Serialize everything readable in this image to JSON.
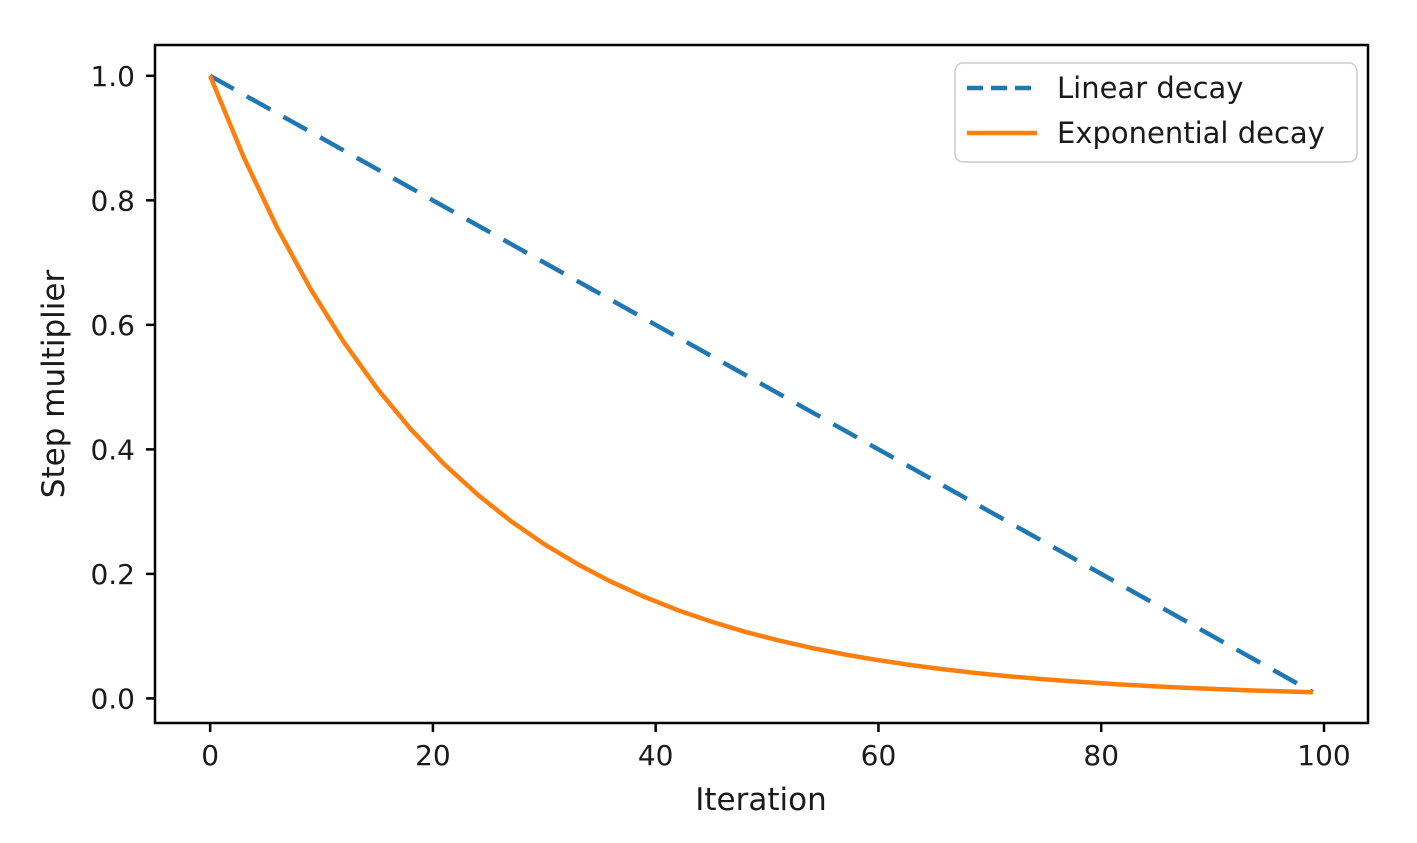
{
  "figure": {
    "background_color": "#ffffff",
    "axis_color": "#000000",
    "text_color": "#1a1a1a",
    "legend_border_color": "#cccccc"
  },
  "chart_data": {
    "type": "line",
    "title": "",
    "xlabel": "Iteration",
    "ylabel": "Step multiplier",
    "xlim": [
      -4.95,
      103.95
    ],
    "ylim": [
      -0.0395,
      1.0495
    ],
    "grid": false,
    "x_ticks": {
      "values": [
        0,
        20,
        40,
        60,
        80,
        100
      ],
      "labels": [
        "0",
        "20",
        "40",
        "60",
        "80",
        "100"
      ]
    },
    "y_ticks": {
      "values": [
        0.0,
        0.2,
        0.4,
        0.6,
        0.8,
        1.0
      ],
      "labels": [
        "0.0",
        "0.2",
        "0.4",
        "0.6",
        "0.8",
        "1.0"
      ]
    },
    "legend": {
      "position": "upper right",
      "entries": [
        "Linear decay",
        "Exponential decay"
      ]
    },
    "series": [
      {
        "name": "Linear decay",
        "color": "#1f77b4",
        "line_style": "dashed",
        "line_width": 4.5,
        "x": [
          0,
          99
        ],
        "y": [
          1.0,
          0.01
        ]
      },
      {
        "name": "Exponential decay",
        "color": "#ff7f0e",
        "line_style": "solid",
        "line_width": 4.5,
        "x": [
          0,
          3,
          6,
          9,
          12,
          15,
          18,
          21,
          24,
          27,
          30,
          33,
          36,
          39,
          42,
          45,
          48,
          51,
          54,
          57,
          60,
          63,
          66,
          69,
          72,
          75,
          78,
          81,
          84,
          87,
          90,
          93,
          96,
          99
        ],
        "y": [
          1.0,
          0.8697,
          0.7565,
          0.658,
          0.5723,
          0.4977,
          0.4329,
          0.3765,
          0.3275,
          0.2848,
          0.2477,
          0.2155,
          0.1874,
          0.163,
          0.1417,
          0.1233,
          0.1072,
          0.0933,
          0.0811,
          0.0705,
          0.0614,
          0.0534,
          0.0464,
          0.0404,
          0.0351,
          0.0305,
          0.0266,
          0.0231,
          0.0201,
          0.0175,
          0.0152,
          0.0132,
          0.0115,
          0.01
        ]
      }
    ]
  }
}
